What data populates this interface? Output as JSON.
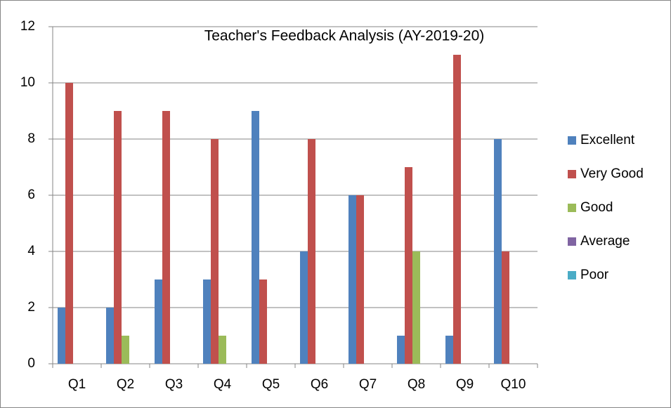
{
  "chart_data": {
    "type": "bar",
    "title": "Teacher's Feedback Analysis (AY-2019-20)",
    "categories": [
      "Q1",
      "Q2",
      "Q3",
      "Q4",
      "Q5",
      "Q6",
      "Q7",
      "Q8",
      "Q9",
      "Q10"
    ],
    "series": [
      {
        "name": "Excellent",
        "color": "#4f81bd",
        "values": [
          2,
          2,
          3,
          3,
          9,
          4,
          6,
          1,
          1,
          8
        ]
      },
      {
        "name": "Very Good",
        "color": "#c0504d",
        "values": [
          10,
          9,
          9,
          8,
          3,
          8,
          6,
          7,
          11,
          4
        ]
      },
      {
        "name": "Good",
        "color": "#9bbb59",
        "values": [
          0,
          1,
          0,
          1,
          0,
          0,
          0,
          4,
          0,
          0
        ]
      },
      {
        "name": "Average",
        "color": "#8064a2",
        "values": [
          0,
          0,
          0,
          0,
          0,
          0,
          0,
          0,
          0,
          0
        ]
      },
      {
        "name": "Poor",
        "color": "#4bacc6",
        "values": [
          0,
          0,
          0,
          0,
          0,
          0,
          0,
          0,
          0,
          0
        ]
      }
    ],
    "ylim": [
      0,
      12
    ],
    "yticks": [
      0,
      2,
      4,
      6,
      8,
      10,
      12
    ],
    "grid": true,
    "legend": "right"
  }
}
